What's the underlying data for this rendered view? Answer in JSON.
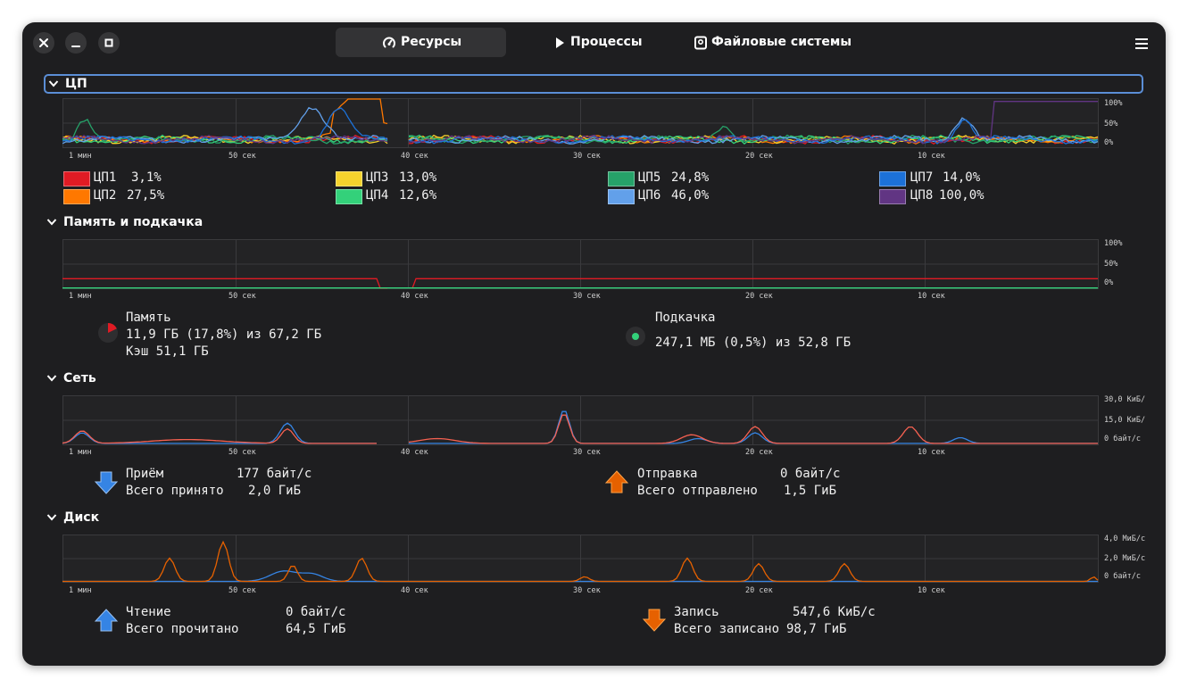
{
  "window_buttons": {
    "close": "close-icon",
    "minimize": "minimize-icon",
    "maximize": "maximize-icon"
  },
  "tabs": [
    {
      "label": "Ресурсы",
      "icon": "gauge-icon",
      "active": true
    },
    {
      "label": "Процессы",
      "icon": "play-icon",
      "active": false
    },
    {
      "label": "Файловые системы",
      "icon": "disk-icon",
      "active": false
    }
  ],
  "menu_icon": "hamburger-menu-icon",
  "time_labels": [
    "1 мин",
    "50 сек",
    "40 сек",
    "30 сек",
    "20 сек",
    "10 сек"
  ],
  "cpu": {
    "title": "ЦП",
    "y_ticks": [
      "100%",
      "50%",
      "0%"
    ],
    "cores": [
      {
        "label": "ЦП1",
        "value": "3,1%",
        "color": "#e01b24"
      },
      {
        "label": "ЦП2",
        "value": "27,5%",
        "color": "#ff7800"
      },
      {
        "label": "ЦП3",
        "value": "13,0%",
        "color": "#f6d32d"
      },
      {
        "label": "ЦП4",
        "value": "12,6%",
        "color": "#33d17a"
      },
      {
        "label": "ЦП5",
        "value": "24,8%",
        "color": "#26a269"
      },
      {
        "label": "ЦП6",
        "value": "46,0%",
        "color": "#62a0ea"
      },
      {
        "label": "ЦП7",
        "value": "14,0%",
        "color": "#1c71d8"
      },
      {
        "label": "ЦП8",
        "value": "100,0%",
        "color": "#613583"
      }
    ]
  },
  "memory": {
    "title": "Память и подкачка",
    "y_ticks": [
      "100%",
      "50%",
      "0%"
    ],
    "ram": {
      "label": "Память",
      "usage": "11,9 ГБ (17,8%) из 67,2 ГБ",
      "cache": "Кэш 51,1 ГБ",
      "color": "#e01b24",
      "fraction": 0.178
    },
    "swap": {
      "label": "Подкачка",
      "usage": "247,1 МБ (0,5%) из 52,8 ГБ",
      "color": "#33d17a",
      "fraction": 0.005
    }
  },
  "network": {
    "title": "Сеть",
    "y_ticks": [
      "30,0 КиБ/",
      "15,0 КиБ/",
      "0 байт/с"
    ],
    "receive": {
      "label": "Приём",
      "rate": "177 байт/с",
      "total_label": "Всего принято",
      "total": "2,0 ГиБ",
      "color": "#3584e4"
    },
    "send": {
      "label": "Отправка",
      "rate": "0 байт/с",
      "total_label": "Всего отправлено",
      "total": "1,5 ГиБ",
      "color": "#f66151"
    }
  },
  "disk": {
    "title": "Диск",
    "y_ticks": [
      "4,0 МиБ/с",
      "2,0 МиБ/с",
      "0 байт/с"
    ],
    "read": {
      "label": "Чтение",
      "rate": "0 байт/с",
      "total_label": "Всего прочитано",
      "total": "64,5 ГиБ",
      "color": "#3584e4"
    },
    "write": {
      "label": "Запись",
      "rate": "547,6 КиБ/с",
      "total_label": "Всего записано",
      "total": "98,7 ГиБ",
      "color": "#e66100"
    }
  }
}
